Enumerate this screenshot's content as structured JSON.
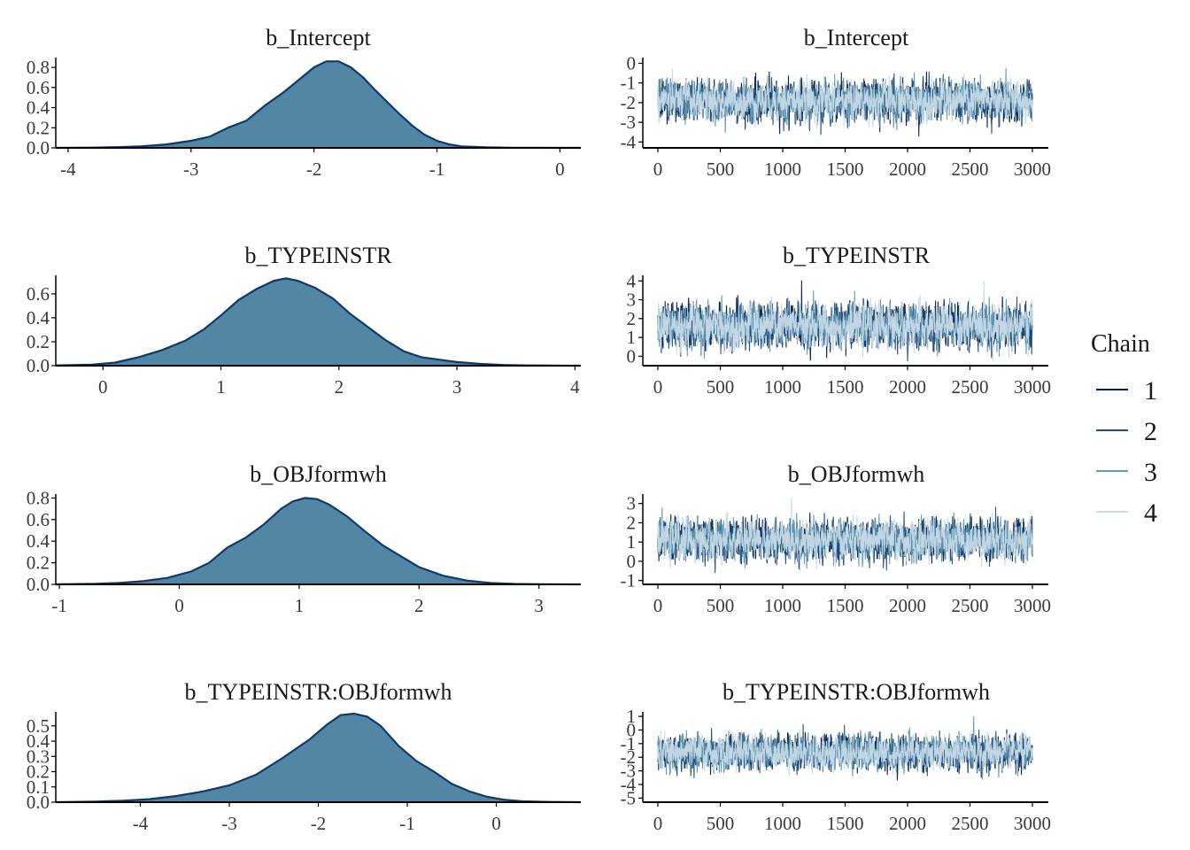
{
  "chart_data": {
    "type": "line",
    "legend": {
      "title": "Chain",
      "placement": "right",
      "entries": [
        "1",
        "2",
        "3",
        "4"
      ],
      "colors": [
        "#011f4b",
        "#1f4e79",
        "#6497b1",
        "#c6dae8"
      ]
    },
    "density_fill": "#5386a4",
    "density_stroke": "#0d3a6e",
    "iterations": 3000,
    "panels": [
      {
        "title": "b_Intercept",
        "density": {
          "xlim": [
            -4.1,
            0.17
          ],
          "ylim": [
            0,
            0.88
          ],
          "xticks": [
            -4,
            -3,
            -2,
            -1,
            0
          ],
          "xtick_labels": [
            "-4",
            "-3",
            "-2",
            "-1",
            "0"
          ],
          "yticks": [
            0,
            0.2,
            0.4,
            0.6,
            0.8
          ],
          "ytick_labels": [
            "0.0",
            "0.2",
            "0.4",
            "0.6",
            "0.8"
          ],
          "x": [
            -4.1,
            -3.8,
            -3.6,
            -3.4,
            -3.2,
            -3.0,
            -2.85,
            -2.7,
            -2.55,
            -2.4,
            -2.25,
            -2.1,
            -2.0,
            -1.9,
            -1.8,
            -1.7,
            -1.6,
            -1.5,
            -1.4,
            -1.3,
            -1.2,
            -1.1,
            -1.0,
            -0.9,
            -0.8,
            -0.6,
            -0.4,
            -0.2,
            0.0,
            0.17
          ],
          "y": [
            0.0,
            0.003,
            0.007,
            0.016,
            0.034,
            0.07,
            0.11,
            0.2,
            0.27,
            0.42,
            0.55,
            0.7,
            0.8,
            0.86,
            0.86,
            0.8,
            0.7,
            0.57,
            0.45,
            0.33,
            0.22,
            0.13,
            0.07,
            0.035,
            0.015,
            0.005,
            0.002,
            0.001,
            0.0,
            0.0
          ]
        },
        "trace": {
          "xlim": [
            -30,
            3130
          ],
          "ylim": [
            -4.3,
            0.2
          ],
          "xticks": [
            0,
            500,
            1000,
            1500,
            2000,
            2500,
            3000
          ],
          "xtick_labels": [
            "0",
            "500",
            "1000",
            "1500",
            "2000",
            "2500",
            "3000"
          ],
          "yticks": [
            0,
            -1,
            -2,
            -3,
            -4
          ],
          "ytick_labels": [
            "0",
            "-1",
            "-2",
            "-3",
            "-4"
          ],
          "mean": -1.9,
          "sd": 0.48
        }
      },
      {
        "title": "b_TYPEINSTR",
        "density": {
          "xlim": [
            -0.4,
            4.05
          ],
          "ylim": [
            0,
            0.74
          ],
          "xticks": [
            0,
            1,
            2,
            3,
            4
          ],
          "xtick_labels": [
            "0",
            "1",
            "2",
            "3",
            "4"
          ],
          "yticks": [
            0,
            0.2,
            0.4,
            0.6
          ],
          "ytick_labels": [
            "0.0",
            "0.2",
            "0.4",
            "0.6"
          ],
          "x": [
            -0.4,
            -0.1,
            0.1,
            0.3,
            0.5,
            0.7,
            0.85,
            1.0,
            1.15,
            1.3,
            1.45,
            1.55,
            1.65,
            1.8,
            1.95,
            2.1,
            2.25,
            2.4,
            2.55,
            2.7,
            2.85,
            3.0,
            3.2,
            3.4,
            3.6,
            3.8,
            4.05
          ],
          "y": [
            0.002,
            0.008,
            0.025,
            0.07,
            0.13,
            0.21,
            0.3,
            0.42,
            0.55,
            0.64,
            0.71,
            0.73,
            0.71,
            0.65,
            0.56,
            0.43,
            0.32,
            0.21,
            0.12,
            0.07,
            0.05,
            0.03,
            0.015,
            0.006,
            0.002,
            0.001,
            0.0
          ]
        },
        "trace": {
          "xlim": [
            -30,
            3130
          ],
          "ylim": [
            -0.5,
            4.2
          ],
          "xticks": [
            0,
            500,
            1000,
            1500,
            2000,
            2500,
            3000
          ],
          "xtick_labels": [
            "0",
            "500",
            "1000",
            "1500",
            "2000",
            "2500",
            "3000"
          ],
          "yticks": [
            0,
            1,
            2,
            3,
            4
          ],
          "ytick_labels": [
            "0",
            "1",
            "2",
            "3",
            "4"
          ],
          "mean": 1.6,
          "sd": 0.55
        }
      },
      {
        "title": "b_OBJformwh",
        "density": {
          "xlim": [
            -1.03,
            3.35
          ],
          "ylim": [
            0,
            0.82
          ],
          "xticks": [
            -1,
            0,
            1,
            2,
            3
          ],
          "xtick_labels": [
            "-1",
            "0",
            "1",
            "2",
            "3"
          ],
          "yticks": [
            0,
            0.2,
            0.4,
            0.6,
            0.8
          ],
          "ytick_labels": [
            "0.0",
            "0.2",
            "0.4",
            "0.6",
            "0.8"
          ],
          "x": [
            -1.03,
            -0.7,
            -0.5,
            -0.3,
            -0.1,
            0.1,
            0.25,
            0.4,
            0.55,
            0.7,
            0.85,
            0.95,
            1.05,
            1.15,
            1.25,
            1.4,
            1.55,
            1.7,
            1.85,
            2.0,
            2.2,
            2.4,
            2.6,
            2.8,
            3.0,
            3.35
          ],
          "y": [
            0.0,
            0.005,
            0.013,
            0.03,
            0.06,
            0.12,
            0.2,
            0.34,
            0.43,
            0.55,
            0.7,
            0.77,
            0.8,
            0.79,
            0.74,
            0.63,
            0.49,
            0.36,
            0.26,
            0.16,
            0.08,
            0.035,
            0.012,
            0.004,
            0.001,
            0.0
          ]
        },
        "trace": {
          "xlim": [
            -30,
            3130
          ],
          "ylim": [
            -1.2,
            3.4
          ],
          "xticks": [
            0,
            500,
            1000,
            1500,
            2000,
            2500,
            3000
          ],
          "xtick_labels": [
            "0",
            "500",
            "1000",
            "1500",
            "2000",
            "2500",
            "3000"
          ],
          "yticks": [
            -1,
            0,
            1,
            2,
            3
          ],
          "ytick_labels": [
            "-1",
            "0",
            "1",
            "2",
            "3"
          ],
          "mean": 1.1,
          "sd": 0.5
        }
      },
      {
        "title": "b_TYPEINSTR:OBJformwh",
        "density": {
          "xlim": [
            -4.95,
            0.95
          ],
          "ylim": [
            0,
            0.58
          ],
          "xticks": [
            -4,
            -3,
            -2,
            -1,
            0
          ],
          "xtick_labels": [
            "-4",
            "-3",
            "-2",
            "-1",
            "0"
          ],
          "yticks": [
            0,
            0.1,
            0.2,
            0.3,
            0.4,
            0.5
          ],
          "ytick_labels": [
            "0.0",
            "0.1",
            "0.2",
            "0.3",
            "0.4",
            "0.5"
          ],
          "x": [
            -4.95,
            -4.5,
            -4.2,
            -3.9,
            -3.6,
            -3.3,
            -3.0,
            -2.7,
            -2.4,
            -2.1,
            -1.9,
            -1.75,
            -1.6,
            -1.45,
            -1.3,
            -1.1,
            -0.9,
            -0.7,
            -0.5,
            -0.3,
            -0.1,
            0.1,
            0.3,
            0.6,
            0.95
          ],
          "y": [
            0.0,
            0.004,
            0.01,
            0.02,
            0.04,
            0.07,
            0.11,
            0.18,
            0.29,
            0.41,
            0.51,
            0.57,
            0.58,
            0.56,
            0.5,
            0.37,
            0.27,
            0.2,
            0.12,
            0.07,
            0.035,
            0.015,
            0.006,
            0.002,
            0.0
          ]
        },
        "trace": {
          "xlim": [
            -30,
            3130
          ],
          "ylim": [
            -5.3,
            1.2
          ],
          "xticks": [
            0,
            500,
            1000,
            1500,
            2000,
            2500,
            3000
          ],
          "xtick_labels": [
            "0",
            "500",
            "1000",
            "1500",
            "2000",
            "2500",
            "3000"
          ],
          "yticks": [
            1,
            0,
            -1,
            -2,
            -3,
            -4,
            -5
          ],
          "ytick_labels": [
            "1",
            "0",
            "-1",
            "-2",
            "-3",
            "-4",
            "-5"
          ],
          "mean": -1.65,
          "sd": 0.6
        }
      }
    ]
  }
}
